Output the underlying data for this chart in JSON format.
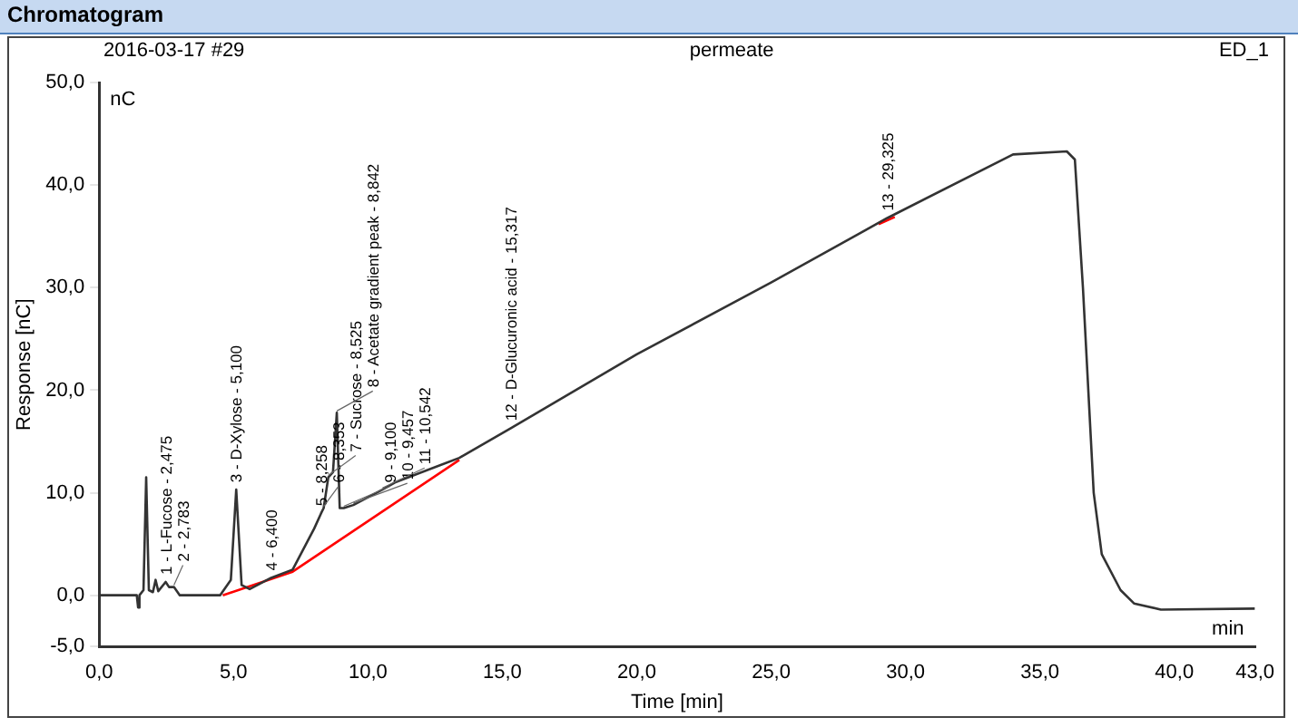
{
  "chart_data": {
    "type": "line",
    "title": "Chromatogram",
    "subtitle": "permeate",
    "xlabel": "Time [min]",
    "ylabel": "Response [nC]",
    "xlim": [
      0,
      43
    ],
    "xticks": [
      {
        "value": 0,
        "label": "0,0"
      },
      {
        "value": 5,
        "label": "5,0"
      },
      {
        "value": 10,
        "label": "10,0"
      },
      {
        "value": 15,
        "label": "15,0"
      },
      {
        "value": 20,
        "label": "20,0"
      },
      {
        "value": 25,
        "label": "25,0"
      },
      {
        "value": 30,
        "label": "30,0"
      },
      {
        "value": 35,
        "label": "35,0"
      },
      {
        "value": 40,
        "label": "40,0"
      },
      {
        "value": 43,
        "label": "43,0"
      }
    ],
    "ylim": [
      -5,
      50
    ],
    "yticks": [
      {
        "value": -5,
        "label": "-5,0"
      },
      {
        "value": 0,
        "label": "0,0"
      },
      {
        "value": 10,
        "label": "10,0"
      },
      {
        "value": 20,
        "label": "20,0"
      },
      {
        "value": 30,
        "label": "30,0"
      },
      {
        "value": 40,
        "label": "40,0"
      },
      {
        "value": 50,
        "label": "50,0"
      }
    ],
    "grid": false,
    "legend": false,
    "marker": "none",
    "series": [
      {
        "color": "#333333",
        "x": [
          0,
          1.4,
          1.45,
          1.5,
          1.65,
          1.75,
          1.85,
          2.0,
          2.1,
          2.2,
          2.475,
          2.6,
          2.783,
          3.0,
          4.5,
          4.9,
          5.1,
          5.3,
          5.6,
          6.4,
          7.2,
          8.0,
          8.258,
          8.353,
          8.525,
          8.7,
          8.842,
          8.95,
          9.1,
          9.457,
          10.542,
          11.0,
          13.4,
          15.317,
          20,
          25,
          29.325,
          34,
          36,
          36.3,
          36.6,
          37,
          37.3,
          38,
          38.5,
          39.5,
          43
        ],
        "values": [
          0,
          0,
          -1.2,
          0,
          0.5,
          11.5,
          0.5,
          0.3,
          1.5,
          0.4,
          1.3,
          0.8,
          0.8,
          0,
          0,
          1.5,
          10.3,
          1.0,
          0.6,
          1.7,
          2.5,
          6.5,
          8.0,
          8.5,
          11.5,
          12,
          17.8,
          8.5,
          8.5,
          8.8,
          10.3,
          11,
          13.4,
          16.3,
          23.5,
          30.5,
          36.8,
          43,
          43.3,
          42.5,
          30,
          10,
          4,
          0.5,
          -0.8,
          -1.4,
          -1.3
        ]
      },
      {
        "color": "#ff0000",
        "x": [
          4.6,
          7.2,
          13.4,
          13.5,
          29.0,
          29.6
        ],
        "values": [
          0,
          2.3,
          13.2,
          null,
          36.2,
          36.9
        ]
      }
    ],
    "annotations": [
      "2016-03-17 #29",
      "ED_1",
      "nC",
      "min",
      {
        "text": "1 - L-Fucose - 2,475",
        "x": 2.475,
        "y": 1.3
      },
      {
        "text": "2 - 2,783",
        "x": 2.783,
        "y": 0.8
      },
      {
        "text": "3 - D-Xylose - 5,100",
        "x": 5.1,
        "y": 10.3
      },
      {
        "text": "4 - 6,400",
        "x": 6.4,
        "y": 1.7
      },
      {
        "text": "5 - 8,258",
        "x": 8.258,
        "y": 8.0
      },
      {
        "text": "6 - 8,353",
        "x": 8.353,
        "y": 8.5
      },
      {
        "text": "7 - Sucrose - 8,525",
        "x": 8.525,
        "y": 11.5
      },
      {
        "text": "8 - Acetate gradient peak - 8,842",
        "x": 8.842,
        "y": 17.8
      },
      {
        "text": "9 - 9,100",
        "x": 9.1,
        "y": 8.5
      },
      {
        "text": "10 - 9,457",
        "x": 9.457,
        "y": 8.8
      },
      {
        "text": "11 - 10,542",
        "x": 10.542,
        "y": 10.3
      },
      {
        "text": "12 - D-Glucuronic acid - 15,317",
        "x": 15.317,
        "y": 16.3
      },
      {
        "text": "13 - 29,325",
        "x": 29.325,
        "y": 36.8
      }
    ]
  }
}
